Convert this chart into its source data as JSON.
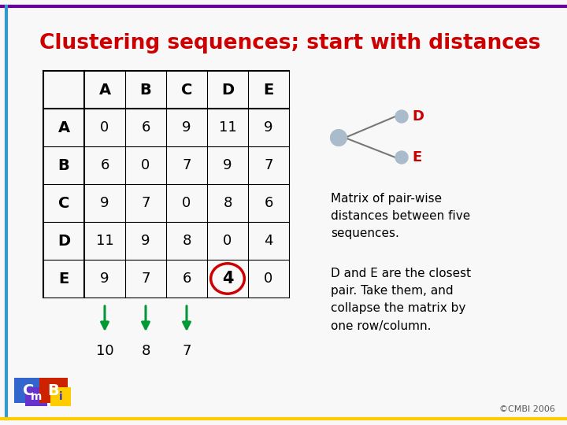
{
  "title": "Clustering sequences; start with distances",
  "title_color": "#cc0000",
  "title_fontsize": 19,
  "background_color": "#f8f8f8",
  "border_top_color": "#660099",
  "border_left_color": "#3399cc",
  "border_bottom_color": "#ffcc00",
  "matrix_headers": [
    "",
    "A",
    "B",
    "C",
    "D",
    "E"
  ],
  "matrix_row_labels": [
    "A",
    "B",
    "C",
    "D",
    "E"
  ],
  "matrix_data": [
    [
      0,
      6,
      9,
      11,
      9
    ],
    [
      6,
      0,
      7,
      9,
      7
    ],
    [
      9,
      7,
      0,
      8,
      6
    ],
    [
      11,
      9,
      8,
      0,
      4
    ],
    [
      9,
      7,
      6,
      4,
      0
    ]
  ],
  "highlighted_cell_row": 4,
  "highlighted_cell_col": 3,
  "highlight_circle_color": "#cc0000",
  "arrow_col_indices": [
    1,
    2,
    3
  ],
  "arrow_color": "#009933",
  "arrow_values": [
    "10",
    "8",
    "7"
  ],
  "text_matrix_label": "Matrix of pair-wise\ndistances between five\nsequences.",
  "text_de_label": "D and E are the closest\npair. Take them, and\ncollapse the matrix by\none row/column.",
  "node_color": "#aabbcc",
  "copyright": "©CMBI 2006"
}
